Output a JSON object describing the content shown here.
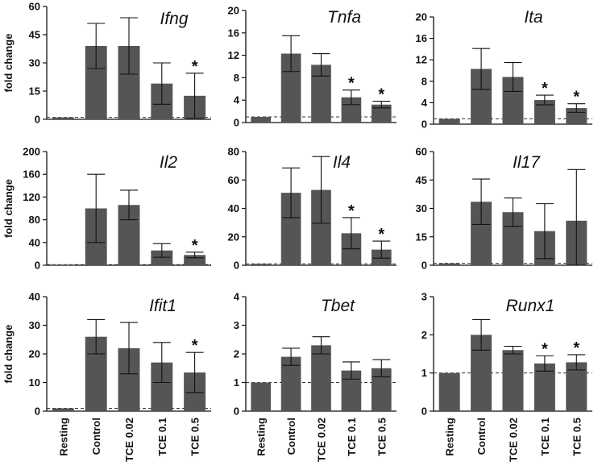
{
  "colors": {
    "bar": "#555555",
    "axis": "#111111",
    "baseline": "#333333"
  },
  "shared": {
    "ylabel": "fold change",
    "categories": [
      "Resting",
      "Control",
      "TCE 0.02",
      "TCE 0.1",
      "TCE 0.5"
    ],
    "significance_marker": "*"
  },
  "chart_data": [
    {
      "type": "bar",
      "title": "Ifng",
      "ylim": [
        0,
        60
      ],
      "ticks": [
        "0",
        "15",
        "30",
        "45",
        "60"
      ],
      "values": [
        1,
        39,
        39,
        19,
        12.5
      ],
      "errors": [
        0,
        12,
        15,
        11,
        12
      ],
      "significant": [
        false,
        false,
        false,
        false,
        true
      ],
      "baseline": 1
    },
    {
      "type": "bar",
      "title": "Tnfa",
      "ylim": [
        0,
        20
      ],
      "ticks": [
        "0",
        "4",
        "8",
        "12",
        "16",
        "20"
      ],
      "values": [
        1,
        12.3,
        10.3,
        4.5,
        3.2
      ],
      "errors": [
        0,
        3.2,
        2,
        1.3,
        0.6
      ],
      "significant": [
        false,
        false,
        false,
        true,
        true
      ],
      "baseline": 1
    },
    {
      "type": "bar",
      "title": "Ita",
      "ylim": [
        0,
        20
      ],
      "ticks": [
        "0",
        "4",
        "8",
        "12",
        "16",
        "20"
      ],
      "values": [
        1,
        10.3,
        8.8,
        4.5,
        3
      ],
      "errors": [
        0,
        3.8,
        2.7,
        0.9,
        0.8
      ],
      "significant": [
        false,
        false,
        false,
        true,
        true
      ],
      "baseline": 1
    },
    {
      "type": "bar",
      "title": "Il2",
      "ylim": [
        0,
        200
      ],
      "ticks": [
        "0",
        "40",
        "80",
        "120",
        "160",
        "200"
      ],
      "values": [
        1,
        100,
        106,
        26,
        18
      ],
      "errors": [
        0,
        60,
        26,
        12,
        5
      ],
      "significant": [
        false,
        false,
        false,
        false,
        true
      ],
      "baseline": 1
    },
    {
      "type": "bar",
      "title": "Il4",
      "ylim": [
        0,
        80
      ],
      "ticks": [
        "0",
        "20",
        "40",
        "60",
        "80"
      ],
      "values": [
        1,
        51,
        53,
        22.5,
        11
      ],
      "errors": [
        0,
        17.5,
        23.5,
        11,
        6
      ],
      "significant": [
        false,
        false,
        false,
        true,
        true
      ],
      "baseline": 1
    },
    {
      "type": "bar",
      "title": "Il17",
      "ylim": [
        0,
        60
      ],
      "ticks": [
        "0",
        "15",
        "30",
        "45",
        "60"
      ],
      "values": [
        1,
        33.5,
        28,
        18,
        23.5
      ],
      "errors": [
        0,
        12,
        7.5,
        14.5,
        27
      ],
      "significant": [
        false,
        false,
        false,
        false,
        false
      ],
      "baseline": 1
    },
    {
      "type": "bar",
      "title": "Ifit1",
      "ylim": [
        0,
        40
      ],
      "ticks": [
        "0",
        "10",
        "20",
        "30",
        "40"
      ],
      "values": [
        1,
        26,
        22,
        17,
        13.5
      ],
      "errors": [
        0,
        6,
        9,
        7,
        7
      ],
      "significant": [
        false,
        false,
        false,
        false,
        true
      ],
      "baseline": 1
    },
    {
      "type": "bar",
      "title": "Tbet",
      "ylim": [
        0,
        4
      ],
      "ticks": [
        "0",
        "1",
        "2",
        "3",
        "4"
      ],
      "values": [
        1,
        1.9,
        2.3,
        1.42,
        1.5
      ],
      "errors": [
        0,
        0.3,
        0.3,
        0.3,
        0.3
      ],
      "significant": [
        false,
        false,
        false,
        false,
        false
      ],
      "baseline": 1
    },
    {
      "type": "bar",
      "title": "Runx1",
      "ylim": [
        0,
        3
      ],
      "ticks": [
        "0",
        "1",
        "2",
        "3"
      ],
      "values": [
        1,
        2,
        1.6,
        1.25,
        1.28
      ],
      "errors": [
        0,
        0.4,
        0.1,
        0.2,
        0.2
      ],
      "significant": [
        false,
        false,
        false,
        true,
        true
      ],
      "baseline": 1
    }
  ]
}
